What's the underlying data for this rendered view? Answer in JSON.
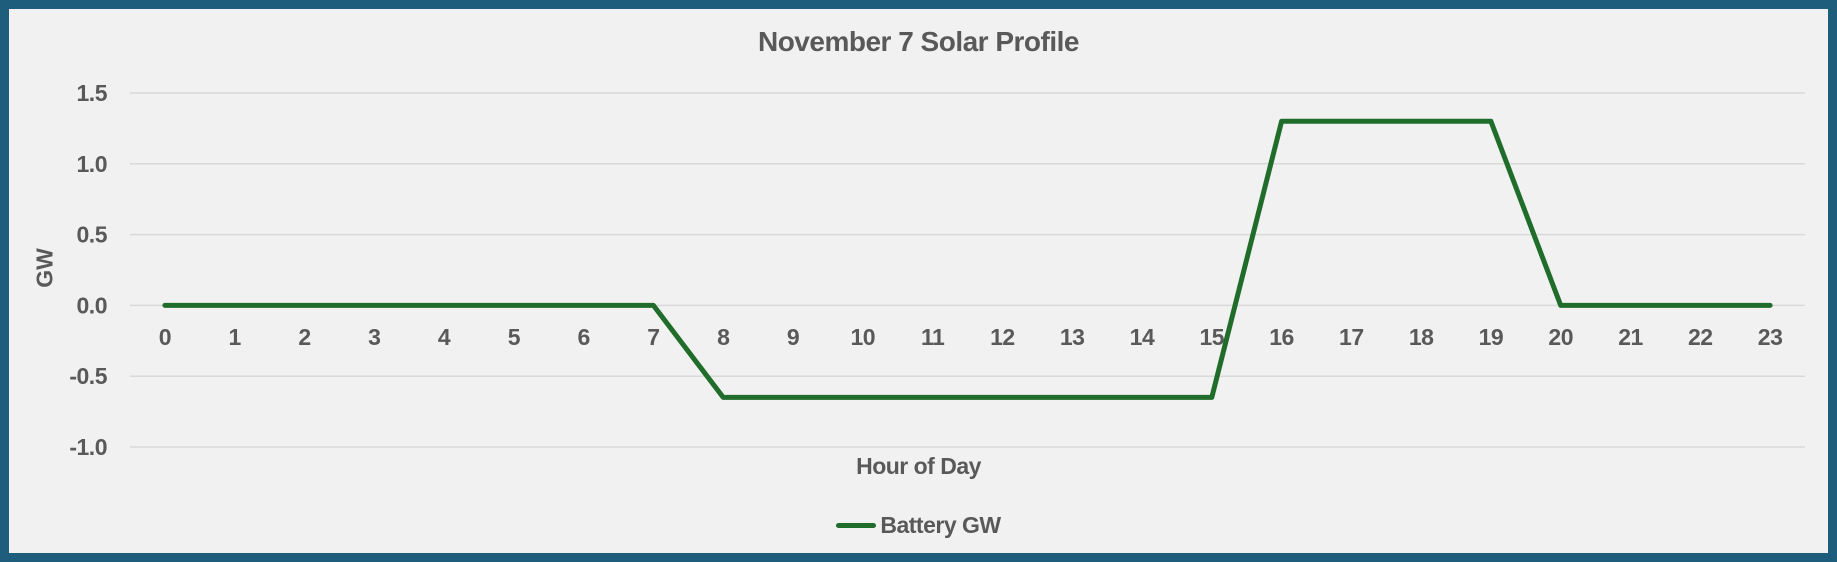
{
  "frame": {
    "border_color": "#1E5E7C",
    "background": "#F1F1F1"
  },
  "chart_data": {
    "type": "line",
    "title": "November 7 Solar Profile",
    "xlabel": "Hour of Day",
    "ylabel": "GW",
    "categories": [
      "0",
      "1",
      "2",
      "3",
      "4",
      "5",
      "6",
      "7",
      "8",
      "9",
      "10",
      "11",
      "12",
      "13",
      "14",
      "15",
      "16",
      "17",
      "18",
      "19",
      "20",
      "21",
      "22",
      "23"
    ],
    "series": [
      {
        "name": "Battery GW",
        "color": "#206C2A",
        "values": [
          0,
          0,
          0,
          0,
          0,
          0,
          0,
          0,
          -0.65,
          -0.65,
          -0.65,
          -0.65,
          -0.65,
          -0.65,
          -0.65,
          -0.65,
          1.3,
          1.3,
          1.3,
          1.3,
          0,
          0,
          0,
          0
        ]
      }
    ],
    "y_ticks": [
      {
        "value": 1.5,
        "label": "1.5"
      },
      {
        "value": 1.0,
        "label": "1.0"
      },
      {
        "value": 0.5,
        "label": "0.5"
      },
      {
        "value": 0.0,
        "label": "0.0"
      },
      {
        "value": -0.5,
        "label": "-0.5"
      },
      {
        "value": -1.0,
        "label": "-1.0"
      }
    ],
    "ylim": [
      -1.0,
      1.5
    ],
    "grid": true,
    "legend_position": "bottom",
    "colors": {
      "gridline": "#D9D9D9",
      "text": "#595959"
    }
  }
}
